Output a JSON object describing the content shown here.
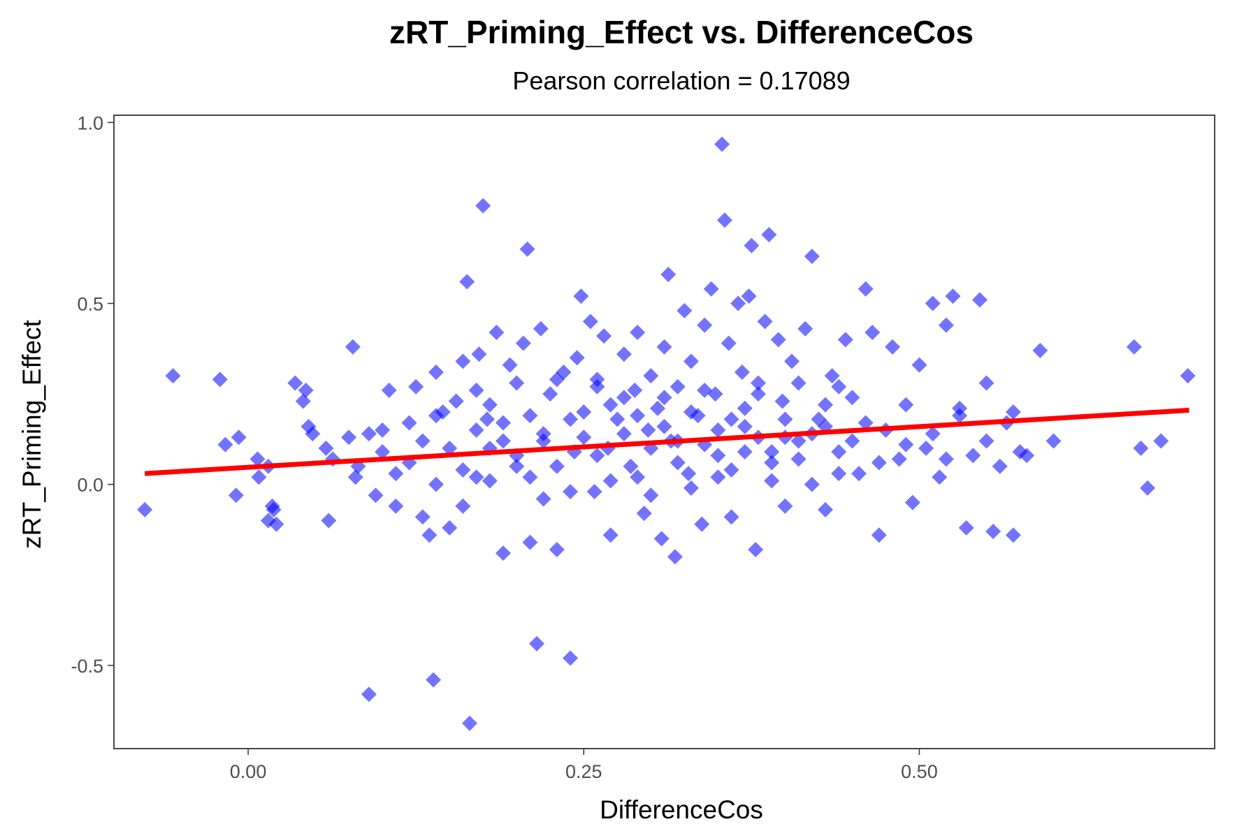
{
  "chart_data": {
    "type": "scatter",
    "title": "zRT_Priming_Effect vs. DifferenceCos",
    "subtitle": "Pearson correlation = 0.17089",
    "xlabel": "DifferenceCos",
    "ylabel": "zRT_Priming_Effect",
    "xlim": [
      -0.1,
      0.72
    ],
    "ylim": [
      -0.73,
      1.02
    ],
    "x_ticks": [
      0.0,
      0.25,
      0.5
    ],
    "x_tick_labels": [
      "0.00",
      "0.25",
      "0.50"
    ],
    "y_ticks": [
      -0.5,
      0.0,
      0.5,
      1.0
    ],
    "y_tick_labels": [
      "-0.5",
      "0.0",
      "0.5",
      "1.0"
    ],
    "grid": false,
    "legend": "none",
    "point_color": "#0000ff",
    "point_opacity": 0.55,
    "marker": "diamond",
    "trend_line": {
      "color": "#ff0000",
      "x": [
        -0.077,
        0.701
      ],
      "y": [
        0.03,
        0.205
      ]
    },
    "points": [
      [
        -0.077,
        -0.07
      ],
      [
        -0.056,
        0.3
      ],
      [
        -0.021,
        0.29
      ],
      [
        -0.017,
        0.11
      ],
      [
        -0.009,
        -0.03
      ],
      [
        -0.007,
        0.13
      ],
      [
        0.008,
        0.02
      ],
      [
        0.015,
        -0.1
      ],
      [
        0.018,
        -0.06
      ],
      [
        0.019,
        -0.07
      ],
      [
        0.007,
        0.07
      ],
      [
        0.015,
        0.05
      ],
      [
        0.021,
        -0.11
      ],
      [
        0.035,
        0.28
      ],
      [
        0.041,
        0.23
      ],
      [
        0.043,
        0.26
      ],
      [
        0.045,
        0.16
      ],
      [
        0.048,
        0.14
      ],
      [
        0.058,
        0.1
      ],
      [
        0.06,
        -0.1
      ],
      [
        0.063,
        0.07
      ],
      [
        0.075,
        0.13
      ],
      [
        0.078,
        0.38
      ],
      [
        0.082,
        0.05
      ],
      [
        0.09,
        -0.58
      ],
      [
        0.095,
        -0.03
      ],
      [
        0.1,
        0.15
      ],
      [
        0.105,
        0.26
      ],
      [
        0.11,
        -0.06
      ],
      [
        0.12,
        0.17
      ],
      [
        0.125,
        0.27
      ],
      [
        0.13,
        -0.09
      ],
      [
        0.135,
        -0.14
      ],
      [
        0.138,
        -0.54
      ],
      [
        0.14,
        0.31
      ],
      [
        0.145,
        0.2
      ],
      [
        0.15,
        -0.12
      ],
      [
        0.155,
        0.23
      ],
      [
        0.16,
        0.34
      ],
      [
        0.163,
        0.56
      ],
      [
        0.165,
        -0.66
      ],
      [
        0.17,
        0.02
      ],
      [
        0.172,
        0.36
      ],
      [
        0.175,
        0.77
      ],
      [
        0.178,
        0.18
      ],
      [
        0.18,
        0.1
      ],
      [
        0.185,
        0.42
      ],
      [
        0.19,
        -0.19
      ],
      [
        0.195,
        0.33
      ],
      [
        0.2,
        0.05
      ],
      [
        0.205,
        0.39
      ],
      [
        0.208,
        0.65
      ],
      [
        0.21,
        -0.16
      ],
      [
        0.215,
        -0.44
      ],
      [
        0.218,
        0.43
      ],
      [
        0.22,
        0.14
      ],
      [
        0.225,
        0.25
      ],
      [
        0.23,
        -0.18
      ],
      [
        0.235,
        0.31
      ],
      [
        0.24,
        -0.48
      ],
      [
        0.243,
        0.09
      ],
      [
        0.245,
        0.35
      ],
      [
        0.248,
        0.52
      ],
      [
        0.25,
        0.2
      ],
      [
        0.255,
        0.45
      ],
      [
        0.258,
        -0.02
      ],
      [
        0.26,
        0.29
      ],
      [
        0.265,
        0.41
      ],
      [
        0.268,
        0.1
      ],
      [
        0.27,
        -0.14
      ],
      [
        0.275,
        0.18
      ],
      [
        0.28,
        0.36
      ],
      [
        0.285,
        0.05
      ],
      [
        0.288,
        0.26
      ],
      [
        0.29,
        0.42
      ],
      [
        0.295,
        -0.08
      ],
      [
        0.298,
        0.15
      ],
      [
        0.3,
        0.3
      ],
      [
        0.305,
        0.21
      ],
      [
        0.308,
        -0.15
      ],
      [
        0.31,
        0.38
      ],
      [
        0.313,
        0.58
      ],
      [
        0.315,
        0.12
      ],
      [
        0.318,
        -0.2
      ],
      [
        0.32,
        0.27
      ],
      [
        0.325,
        0.48
      ],
      [
        0.328,
        0.03
      ],
      [
        0.33,
        0.34
      ],
      [
        0.335,
        0.19
      ],
      [
        0.338,
        -0.11
      ],
      [
        0.34,
        0.44
      ],
      [
        0.345,
        0.54
      ],
      [
        0.348,
        0.25
      ],
      [
        0.35,
        0.08
      ],
      [
        0.353,
        0.94
      ],
      [
        0.355,
        0.73
      ],
      [
        0.358,
        0.39
      ],
      [
        0.36,
        -0.09
      ],
      [
        0.365,
        0.5
      ],
      [
        0.368,
        0.31
      ],
      [
        0.37,
        0.16
      ],
      [
        0.373,
        0.52
      ],
      [
        0.375,
        0.66
      ],
      [
        0.378,
        -0.18
      ],
      [
        0.38,
        0.28
      ],
      [
        0.385,
        0.45
      ],
      [
        0.388,
        0.69
      ],
      [
        0.39,
        0.06
      ],
      [
        0.395,
        0.4
      ],
      [
        0.398,
        0.23
      ],
      [
        0.4,
        -0.06
      ],
      [
        0.405,
        0.34
      ],
      [
        0.41,
        0.12
      ],
      [
        0.415,
        0.43
      ],
      [
        0.42,
        0.63
      ],
      [
        0.425,
        0.18
      ],
      [
        0.43,
        -0.07
      ],
      [
        0.435,
        0.3
      ],
      [
        0.44,
        0.09
      ],
      [
        0.445,
        0.4
      ],
      [
        0.45,
        0.24
      ],
      [
        0.455,
        0.03
      ],
      [
        0.46,
        0.54
      ],
      [
        0.465,
        0.42
      ],
      [
        0.47,
        -0.14
      ],
      [
        0.475,
        0.15
      ],
      [
        0.48,
        0.38
      ],
      [
        0.485,
        0.07
      ],
      [
        0.49,
        0.22
      ],
      [
        0.495,
        -0.05
      ],
      [
        0.5,
        0.33
      ],
      [
        0.505,
        0.1
      ],
      [
        0.51,
        0.5
      ],
      [
        0.515,
        0.02
      ],
      [
        0.52,
        0.44
      ],
      [
        0.525,
        0.52
      ],
      [
        0.53,
        0.19
      ],
      [
        0.535,
        -0.12
      ],
      [
        0.54,
        0.08
      ],
      [
        0.545,
        0.51
      ],
      [
        0.55,
        0.28
      ],
      [
        0.555,
        -0.13
      ],
      [
        0.56,
        0.05
      ],
      [
        0.565,
        0.17
      ],
      [
        0.57,
        -0.14
      ],
      [
        0.575,
        0.09
      ],
      [
        0.58,
        0.08
      ],
      [
        0.59,
        0.37
      ],
      [
        0.6,
        0.12
      ],
      [
        0.66,
        0.38
      ],
      [
        0.665,
        0.1
      ],
      [
        0.67,
        -0.01
      ],
      [
        0.68,
        0.12
      ],
      [
        0.7,
        0.3
      ],
      [
        0.22,
        0.12
      ],
      [
        0.23,
        0.05
      ],
      [
        0.24,
        0.18
      ],
      [
        0.26,
        0.08
      ],
      [
        0.27,
        0.22
      ],
      [
        0.28,
        0.14
      ],
      [
        0.29,
        0.02
      ],
      [
        0.3,
        0.1
      ],
      [
        0.31,
        0.16
      ],
      [
        0.32,
        0.06
      ],
      [
        0.33,
        0.2
      ],
      [
        0.34,
        0.11
      ],
      [
        0.35,
        0.15
      ],
      [
        0.36,
        0.04
      ],
      [
        0.37,
        0.21
      ],
      [
        0.38,
        0.13
      ],
      [
        0.39,
        0.09
      ],
      [
        0.4,
        0.18
      ],
      [
        0.41,
        0.07
      ],
      [
        0.42,
        0.14
      ],
      [
        0.43,
        0.22
      ],
      [
        0.44,
        0.03
      ],
      [
        0.45,
        0.12
      ],
      [
        0.46,
        0.17
      ],
      [
        0.47,
        0.06
      ],
      [
        0.15,
        0.1
      ],
      [
        0.16,
        0.04
      ],
      [
        0.17,
        0.15
      ],
      [
        0.18,
        0.01
      ],
      [
        0.19,
        0.12
      ],
      [
        0.2,
        0.08
      ],
      [
        0.21,
        0.19
      ],
      [
        0.12,
        0.06
      ],
      [
        0.13,
        0.12
      ],
      [
        0.14,
        0.0
      ],
      [
        0.1,
        0.09
      ],
      [
        0.11,
        0.03
      ],
      [
        0.09,
        0.14
      ],
      [
        0.08,
        0.02
      ],
      [
        0.49,
        0.11
      ],
      [
        0.51,
        0.14
      ],
      [
        0.52,
        0.07
      ],
      [
        0.53,
        0.21
      ],
      [
        0.55,
        0.12
      ],
      [
        0.57,
        0.2
      ],
      [
        0.25,
        0.13
      ],
      [
        0.26,
        0.27
      ],
      [
        0.27,
        0.01
      ],
      [
        0.28,
        0.24
      ],
      [
        0.29,
        0.19
      ],
      [
        0.3,
        -0.03
      ],
      [
        0.31,
        0.24
      ],
      [
        0.32,
        0.12
      ],
      [
        0.33,
        -0.01
      ],
      [
        0.34,
        0.26
      ],
      [
        0.35,
        0.02
      ],
      [
        0.36,
        0.18
      ],
      [
        0.37,
        0.09
      ],
      [
        0.38,
        0.25
      ],
      [
        0.39,
        0.01
      ],
      [
        0.4,
        0.13
      ],
      [
        0.41,
        0.28
      ],
      [
        0.42,
        0.0
      ],
      [
        0.43,
        0.16
      ],
      [
        0.44,
        0.27
      ],
      [
        0.18,
        0.22
      ],
      [
        0.2,
        0.28
      ],
      [
        0.22,
        -0.04
      ],
      [
        0.24,
        -0.02
      ],
      [
        0.23,
        0.29
      ],
      [
        0.21,
        0.02
      ],
      [
        0.19,
        0.17
      ],
      [
        0.17,
        0.26
      ],
      [
        0.16,
        -0.06
      ],
      [
        0.14,
        0.19
      ]
    ]
  }
}
